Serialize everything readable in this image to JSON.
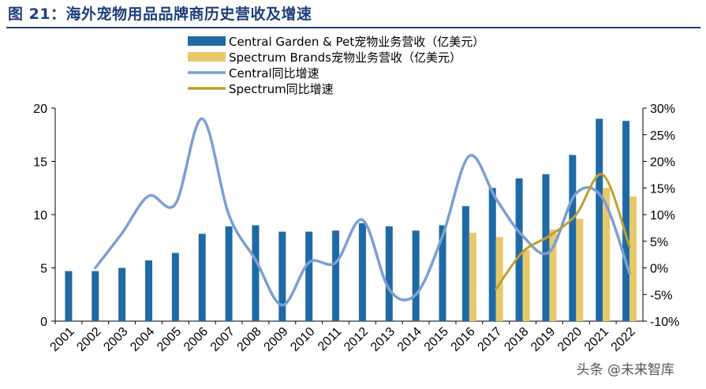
{
  "title": "图 21：海外宠物用品品牌商历史营收及增速",
  "watermark": "头条 @未来智库",
  "chart_data": {
    "type": "bar",
    "categories": [
      "2001",
      "2002",
      "2003",
      "2004",
      "2005",
      "2006",
      "2007",
      "2008",
      "2009",
      "2010",
      "2011",
      "2012",
      "2013",
      "2014",
      "2015",
      "2016",
      "2017",
      "2018",
      "2019",
      "2020",
      "2021",
      "2022"
    ],
    "series": [
      {
        "name": "Central Garden & Pet宠物业务营收（亿美元）",
        "kind": "bar",
        "axis": "left",
        "color": "#1f6aa5",
        "values": [
          4.7,
          4.7,
          5.0,
          5.7,
          6.4,
          8.2,
          8.9,
          9.0,
          8.4,
          8.4,
          8.5,
          9.2,
          8.9,
          8.5,
          9.0,
          10.8,
          12.5,
          13.4,
          13.8,
          15.6,
          19.0,
          18.8
        ]
      },
      {
        "name": "Spectrum Brands宠物业务营收（亿美元）",
        "kind": "bar",
        "axis": "left",
        "color": "#e8c96a",
        "values": [
          null,
          null,
          null,
          null,
          null,
          null,
          null,
          null,
          null,
          null,
          null,
          null,
          null,
          null,
          null,
          8.3,
          7.9,
          6.7,
          8.6,
          9.6,
          12.5,
          11.7
        ]
      },
      {
        "name": "Central同比增速",
        "kind": "line",
        "axis": "right",
        "color": "#7b9fd4",
        "values": [
          null,
          0,
          6.5,
          13.5,
          12,
          28,
          10,
          1.5,
          -7,
          1,
          1,
          9,
          -4,
          -5,
          6,
          21,
          13,
          6,
          3,
          14,
          13,
          -1
        ]
      },
      {
        "name": "Spectrum同比增速",
        "kind": "line",
        "axis": "right",
        "color": "#bfa02e",
        "values": [
          null,
          null,
          null,
          null,
          null,
          null,
          null,
          null,
          null,
          null,
          null,
          null,
          null,
          null,
          null,
          null,
          -4,
          3,
          6,
          10,
          17.5,
          4
        ]
      }
    ],
    "left_ticks": [
      "0",
      "5",
      "10",
      "15",
      "20"
    ],
    "right_ticks": [
      "-10%",
      "-5%",
      "0%",
      "5%",
      "10%",
      "15%",
      "20%",
      "25%",
      "30%"
    ],
    "ylim_left": [
      0,
      20
    ],
    "ylim_right": [
      -10,
      30
    ],
    "legend_position": "top"
  }
}
